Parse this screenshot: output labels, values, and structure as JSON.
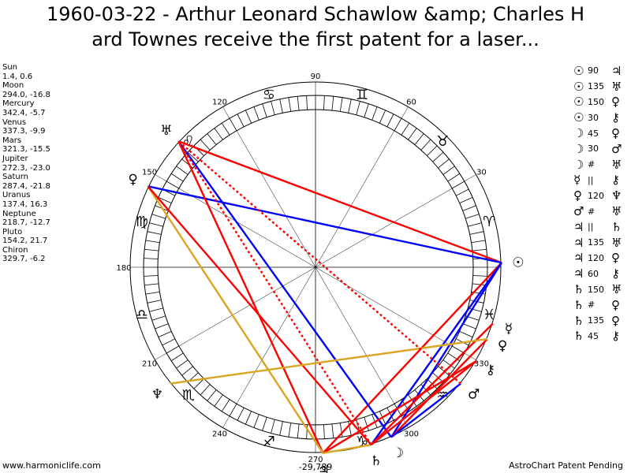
{
  "title": {
    "line1": "1960-03-22 - Arthur Leonard Schawlow &amp; Charles H",
    "line2": "ard Townes receive the first patent for a laser..."
  },
  "planets": [
    {
      "name": "Sun",
      "coords": "1.4, 0.6"
    },
    {
      "name": "Moon",
      "coords": "294.0, -16.8"
    },
    {
      "name": "Mercury",
      "coords": "342.4, -5.7"
    },
    {
      "name": "Venus",
      "coords": "337.3, -9.9"
    },
    {
      "name": "Mars",
      "coords": "321.3, -15.5"
    },
    {
      "name": "Jupiter",
      "coords": "272.3, -23.0"
    },
    {
      "name": "Saturn",
      "coords": "287.4, -21.8"
    },
    {
      "name": "Uranus",
      "coords": "137.4, 16.3"
    },
    {
      "name": "Neptune",
      "coords": "218.7, -12.7"
    },
    {
      "name": "Pluto",
      "coords": "154.2, 21.7"
    },
    {
      "name": "Chiron",
      "coords": "329.7, -6.2"
    }
  ],
  "aspects": [
    {
      "a": "☉",
      "angle": "90",
      "b": "♃"
    },
    {
      "a": "☉",
      "angle": "135",
      "b": "♅"
    },
    {
      "a": "☉",
      "angle": "150",
      "b": "♀"
    },
    {
      "a": "☉",
      "angle": "30",
      "b": "⚷"
    },
    {
      "a": "☽",
      "angle": "45",
      "b": "♀"
    },
    {
      "a": "☽",
      "angle": "30",
      "b": "♂"
    },
    {
      "a": "☽",
      "angle": "#",
      "b": "♅"
    },
    {
      "a": "☿",
      "angle": "||",
      "b": "⚷"
    },
    {
      "a": "♀",
      "angle": "120",
      "b": "♆"
    },
    {
      "a": "♂",
      "angle": "#",
      "b": "♅"
    },
    {
      "a": "♃",
      "angle": "||",
      "b": "♄"
    },
    {
      "a": "♃",
      "angle": "135",
      "b": "♅"
    },
    {
      "a": "♃",
      "angle": "120",
      "b": "♀"
    },
    {
      "a": "♃",
      "angle": "60",
      "b": "⚷"
    },
    {
      "a": "♄",
      "angle": "150",
      "b": "♅"
    },
    {
      "a": "♄",
      "angle": "#",
      "b": "♀"
    },
    {
      "a": "♄",
      "angle": "135",
      "b": "♀"
    },
    {
      "a": "♄",
      "angle": "45",
      "b": "⚷"
    }
  ],
  "wheel": {
    "degree_labels": [
      "90",
      "120",
      "60",
      "150",
      "30",
      "180",
      "210",
      "240",
      "270",
      "300",
      "330"
    ],
    "zodiac_signs": [
      "♈",
      "♉",
      "♊",
      "♋",
      "♌",
      "♍",
      "♎",
      "♏",
      "♐",
      "♑",
      "♒",
      "♓"
    ],
    "planet_glyphs": [
      {
        "id": "sun",
        "glyph": "☉",
        "longitude": 1.4
      },
      {
        "id": "moon",
        "glyph": "☽",
        "longitude": 294.0
      },
      {
        "id": "mercury",
        "glyph": "☿",
        "longitude": 342.4
      },
      {
        "id": "venus",
        "glyph": "♀",
        "longitude": 337.3
      },
      {
        "id": "mars",
        "glyph": "♂",
        "longitude": 321.3
      },
      {
        "id": "jupiter",
        "glyph": "♃",
        "longitude": 272.3
      },
      {
        "id": "saturn",
        "glyph": "♄",
        "longitude": 287.4
      },
      {
        "id": "uranus",
        "glyph": "♅",
        "longitude": 137.4
      },
      {
        "id": "neptune",
        "glyph": "♆",
        "longitude": 218.7
      },
      {
        "id": "pluto",
        "glyph": "♀",
        "longitude": 154.2
      },
      {
        "id": "chiron",
        "glyph": "⚷",
        "longitude": 329.7
      }
    ],
    "aspect_lines": [
      {
        "from": "sun",
        "to": "uranus",
        "color": "#ff0000",
        "style": "solid"
      },
      {
        "from": "sun",
        "to": "pluto",
        "color": "#0000ff",
        "style": "solid"
      },
      {
        "from": "sun",
        "to": "jupiter",
        "color": "#ff0000",
        "style": "solid"
      },
      {
        "from": "sun",
        "to": "saturn",
        "color": "#0000ff",
        "style": "solid"
      },
      {
        "from": "sun",
        "to": "moon",
        "color": "#0000ff",
        "style": "solid"
      },
      {
        "from": "moon",
        "to": "uranus",
        "color": "#0000ff",
        "style": "solid"
      },
      {
        "from": "moon",
        "to": "venus",
        "color": "#ff0000",
        "style": "solid"
      },
      {
        "from": "moon",
        "to": "mars",
        "color": "#0000ff",
        "style": "solid"
      },
      {
        "from": "jupiter",
        "to": "uranus",
        "color": "#ff0000",
        "style": "solid"
      },
      {
        "from": "jupiter",
        "to": "pluto",
        "color": "#daa520",
        "style": "solid"
      },
      {
        "from": "jupiter",
        "to": "chiron",
        "color": "#ff0000",
        "style": "solid"
      },
      {
        "from": "jupiter",
        "to": "saturn",
        "color": "#daa520",
        "style": "solid"
      },
      {
        "from": "saturn",
        "to": "uranus",
        "color": "#ff0000",
        "style": "dotted"
      },
      {
        "from": "saturn",
        "to": "pluto",
        "color": "#ff0000",
        "style": "solid"
      },
      {
        "from": "saturn",
        "to": "chiron",
        "color": "#ff0000",
        "style": "solid"
      },
      {
        "from": "saturn",
        "to": "mercury",
        "color": "#ff0000",
        "style": "solid"
      },
      {
        "from": "neptune",
        "to": "venus",
        "color": "#daa520",
        "style": "solid"
      },
      {
        "from": "mars",
        "to": "uranus",
        "color": "#ff0000",
        "style": "dotted"
      }
    ]
  },
  "footer": {
    "left": "www.harmoniclife.com",
    "right": "AstroChart Patent Pending",
    "coord": "-29,789"
  }
}
